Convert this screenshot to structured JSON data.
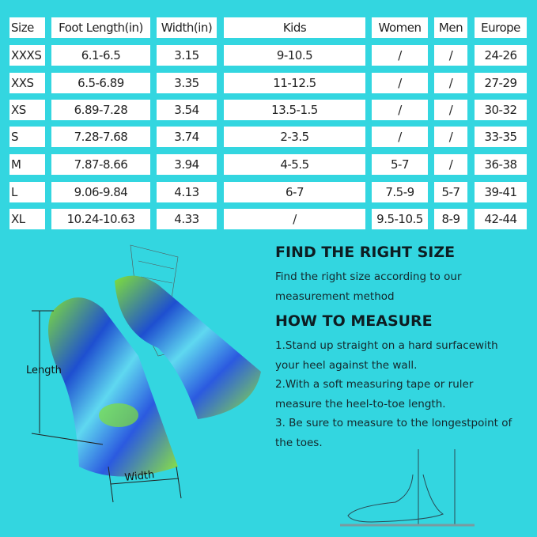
{
  "table": {
    "headers": [
      "Size",
      "Foot Length(in)",
      "Width(in)",
      "Kids",
      "Women",
      "Men",
      "Europe"
    ],
    "rows": [
      [
        "XXXS",
        "6.1-6.5",
        "3.15",
        "9-10.5",
        "/",
        "/",
        "24-26"
      ],
      [
        "XXS",
        "6.5-6.89",
        "3.35",
        "11-12.5",
        "/",
        "/",
        "27-29"
      ],
      [
        "XS",
        "6.89-7.28",
        "3.54",
        "13.5-1.5",
        "/",
        "/",
        "30-32"
      ],
      [
        "S",
        "7.28-7.68",
        "3.74",
        "2-3.5",
        "/",
        "/",
        "33-35"
      ],
      [
        "M",
        "7.87-8.66",
        "3.94",
        "4-5.5",
        "5-7",
        "/",
        "36-38"
      ],
      [
        "L",
        "9.06-9.84",
        "4.13",
        "6-7",
        "7.5-9",
        "5-7",
        "39-41"
      ],
      [
        "XL",
        "10.24-10.63",
        "4.33",
        "/",
        "9.5-10.5",
        "8-9",
        "42-44"
      ]
    ]
  },
  "find_size": {
    "title": "FIND THE RIGHT SIZE",
    "text": "Find the right size according to our measurement method"
  },
  "how_to": {
    "title": "HOW TO MEASURE",
    "steps": [
      "1.Stand up straight on a hard surfacewith your heel against the wall.",
      "2.With a soft measuring tape or ruler measure the heel-to-toe length.",
      "3. Be sure to measure to the longestpoint of the toes."
    ]
  },
  "diagram": {
    "length_label": "Length",
    "width_label": "Width"
  },
  "colors": {
    "background": "#33d6e0",
    "cell": "#ffffff",
    "fin_blue": "#1e4fd0",
    "fin_green": "#7fe03a"
  }
}
